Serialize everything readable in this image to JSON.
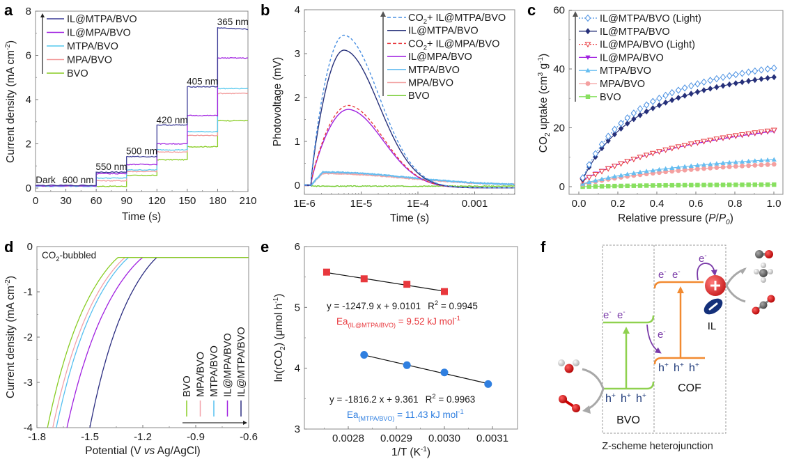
{
  "panels": {
    "a": {
      "letter": "a"
    },
    "b": {
      "letter": "b"
    },
    "c": {
      "letter": "c"
    },
    "d": {
      "letter": "d"
    },
    "e": {
      "letter": "e"
    },
    "f": {
      "letter": "f"
    }
  },
  "chart_data": [
    {
      "id": "a",
      "type": "line",
      "title": "",
      "xlabel": "Time (s)",
      "ylabel": "Current density (mA cm-2)",
      "xlim": [
        0,
        210
      ],
      "ylim": [
        0,
        8
      ],
      "xticks": [
        0,
        30,
        60,
        90,
        120,
        150,
        180,
        210
      ],
      "yticks": [
        0,
        2,
        4,
        6,
        8
      ],
      "legend": "top-left",
      "annotations": [
        {
          "text": "Dark",
          "x": 10,
          "y": 0.35
        },
        {
          "text": "600 nm",
          "x": 42,
          "y": 0.35
        },
        {
          "text": "550 nm",
          "x": 75,
          "y": 0.95
        },
        {
          "text": "500 nm",
          "x": 105,
          "y": 1.65
        },
        {
          "text": "420 nm",
          "x": 135,
          "y": 3.05
        },
        {
          "text": "405 nm",
          "x": 165,
          "y": 4.8
        },
        {
          "text": "365 nm",
          "x": 195,
          "y": 7.5
        }
      ],
      "step_x": [
        0,
        60,
        90,
        120,
        150,
        180,
        210
      ],
      "series": [
        {
          "name": "IL@MTPA/BVO",
          "color": "#3a3a96",
          "values": [
            0.12,
            0.72,
            1.42,
            2.85,
            4.58,
            7.25
          ]
        },
        {
          "name": "IL@MPA/BVO",
          "color": "#a020e0",
          "values": [
            0.1,
            0.65,
            1.07,
            2.0,
            3.28,
            5.88
          ]
        },
        {
          "name": "MTPA/BVO",
          "color": "#55c8ee",
          "values": [
            0.08,
            0.45,
            0.82,
            1.73,
            2.55,
            4.5
          ]
        },
        {
          "name": "MPA/BVO",
          "color": "#f29a9a",
          "values": [
            0.09,
            0.33,
            0.75,
            1.63,
            2.38,
            4.28
          ]
        },
        {
          "name": "BVO",
          "color": "#88cc22",
          "values": [
            0.1,
            0.08,
            0.57,
            1.28,
            1.87,
            3.05
          ]
        }
      ]
    },
    {
      "id": "b",
      "type": "line",
      "title": "",
      "xlabel": "Time (s)",
      "ylabel": "Photovoltage (mV)",
      "xscale": "log",
      "xlim": [
        1e-06,
        0.005
      ],
      "ylim": [
        -0.15,
        4
      ],
      "xticks": [
        "1E-6",
        "1E-5",
        "1E-4",
        "0.001"
      ],
      "yticks": [
        0,
        1,
        2,
        3,
        4
      ],
      "legend": "top-right",
      "series": [
        {
          "name": "CO2+ IL@MTPA/BVO",
          "color": "#4a90e2",
          "dashed": true,
          "peak": 3.42,
          "peak_time": 5e-06
        },
        {
          "name": "IL@MTPA/BVO",
          "color": "#26307a",
          "dashed": false,
          "peak": 3.08,
          "peak_time": 5e-06
        },
        {
          "name": "CO2+ IL@MPA/BVO",
          "color": "#e8383d",
          "dashed": true,
          "peak": 1.82,
          "peak_time": 6e-06
        },
        {
          "name": "IL@MPA/BVO",
          "color": "#a020e0",
          "dashed": false,
          "peak": 1.73,
          "peak_time": 6e-06
        },
        {
          "name": "MTPA/BVO",
          "color": "#66bdf0",
          "dashed": false,
          "peak": 0.3,
          "peak_time": 2.2e-06
        },
        {
          "name": "MPA/BVO",
          "color": "#f2a6a6",
          "dashed": false,
          "peak": 0.27,
          "peak_time": 2.2e-06
        },
        {
          "name": "BVO",
          "color": "#77cc33",
          "dashed": false,
          "peak": -0.02,
          "peak_time": 5e-06
        }
      ]
    },
    {
      "id": "c",
      "type": "scatter",
      "title": "",
      "xlabel": "Relative pressure (P/P0)",
      "ylabel": "CO2 uptake (cm3 g-1)",
      "xlim": [
        -0.04,
        1.04
      ],
      "ylim": [
        -2.5,
        60
      ],
      "xticks": [
        0.0,
        0.2,
        0.4,
        0.6,
        0.8,
        1.0
      ],
      "yticks": [
        0,
        20,
        40,
        60
      ],
      "legend": "top-left",
      "series": [
        {
          "name": "IL@MTPA/BVO (Light)",
          "color": "#4a90e2",
          "marker": "diamond-open",
          "dashed": true,
          "at_p1": 40.3,
          "at_p002": 3.0
        },
        {
          "name": "IL@MTPA/BVO",
          "color": "#26307a",
          "marker": "diamond",
          "dashed": false,
          "at_p1": 37.2,
          "at_p002": 2.5
        },
        {
          "name": "IL@MPA/BVO (Light)",
          "color": "#e8383d",
          "marker": "triangle-down-open",
          "dashed": true,
          "at_p1": 19.2,
          "at_p002": 2.0
        },
        {
          "name": "IL@MPA/BVO",
          "color": "#a020e0",
          "marker": "triangle-down",
          "dashed": false,
          "at_p1": 18.8,
          "at_p002": 2.3
        },
        {
          "name": "MTPA/BVO",
          "color": "#66bdf0",
          "marker": "triangle-up",
          "dashed": false,
          "at_p1": 9.2,
          "at_p002": 1.0
        },
        {
          "name": "MPA/BVO",
          "color": "#f4a0a0",
          "marker": "circle",
          "dashed": false,
          "at_p1": 7.6,
          "at_p002": 0.8
        },
        {
          "name": "BVO",
          "color": "#88e060",
          "marker": "square",
          "dashed": false,
          "at_p1": 0.7,
          "at_p002": 0.0
        }
      ]
    },
    {
      "id": "d",
      "type": "line",
      "title": "",
      "xlabel": "Potential (V vs Ag/AgCl)",
      "ylabel": "Current density (mA cm-2)",
      "xlim": [
        -1.8,
        -0.6
      ],
      "ylim": [
        -4,
        0
      ],
      "xticks": [
        -1.8,
        -1.5,
        -1.2,
        -0.9,
        -0.6
      ],
      "yticks": [
        0,
        -1,
        -2,
        -3,
        -4
      ],
      "annotation": "CO2-bubbled",
      "legend": "bottom-right",
      "series": [
        {
          "name": "BVO",
          "color": "#88cc22",
          "onset": -1.34,
          "x_at_minus4": -1.74
        },
        {
          "name": "MPA/BVO",
          "color": "#f2a0a8",
          "onset": -1.3,
          "x_at_minus4": -1.71
        },
        {
          "name": "MTPA/BVO",
          "color": "#55c0f0",
          "onset": -1.28,
          "x_at_minus4": -1.69
        },
        {
          "name": "IL@MPA/BVO",
          "color": "#a020e0",
          "onset": -1.2,
          "x_at_minus4": -1.63
        },
        {
          "name": "IL@MTPA/BVO",
          "color": "#2a2c80",
          "onset": -1.12,
          "x_at_minus4": -1.5
        }
      ],
      "plateau": -0.24
    },
    {
      "id": "e",
      "type": "scatter",
      "title": "",
      "xlabel": "1/T (K-1)",
      "ylabel": "ln(rCO2) (μmol h-1)",
      "xlim": [
        0.002709,
        0.003152
      ],
      "ylim": [
        3,
        6
      ],
      "xticks": [
        "0.0028",
        "0.0029",
        "0.0030",
        "0.0031"
      ],
      "yticks": [
        3,
        4,
        5,
        6
      ],
      "series": [
        {
          "name": "IL@MTPA/BVO",
          "color": "#e8383d",
          "marker": "square",
          "x": [
            0.002755,
            0.002833,
            0.002922,
            0.003
          ],
          "y": [
            5.58,
            5.47,
            5.38,
            5.26
          ],
          "fit": {
            "slope": -1247.9,
            "intercept": 9.0101
          }
        },
        {
          "name": "MTPA/BVO",
          "color": "#2f7fe0",
          "marker": "circle",
          "x": [
            0.002833,
            0.002922,
            0.003,
            0.003091
          ],
          "y": [
            4.22,
            4.05,
            3.93,
            3.74
          ],
          "fit": {
            "slope": -1816.2,
            "intercept": 9.361
          }
        }
      ],
      "annotations": {
        "eq1": "y = -1247.9 x + 9.0101",
        "r2_1_label": "R",
        "r2_1_value": " = 0.9945",
        "ea1_prefix": "Ea",
        "ea1_sub": "(IL@MTPA/BVO)",
        "ea1_value": " = 9.52 kJ mol",
        "eq2": "y = -1816.2 x + 9.361",
        "r2_2_label": "R",
        "r2_2_value": " = 0.9963",
        "ea2_prefix": "Ea",
        "ea2_sub": "(MTPA/BVO)",
        "ea2_value": " = 11.43 kJ mol"
      }
    }
  ],
  "axis_labels": {
    "a_y_main": "Current density (mA cm",
    "a_y_sup": "-2",
    "a_y_end": ")",
    "b_y": "Photovoltage (mV)",
    "c_y_pre": "CO",
    "c_y_sub": "2",
    "c_y_mid": " uptake (cm",
    "c_y_sup1": "3",
    "c_y_mid2": " g",
    "c_y_sup2": "-1",
    "c_y_end": ")",
    "c_x_pre": "Relative pressure (",
    "c_x_p": "P",
    "c_x_slash": "/",
    "c_x_p0": "P",
    "c_x_0": "0",
    "c_x_end": ")",
    "d_x_pre": "Potential (V ",
    "d_x_vs": "vs",
    "d_x_end": " Ag/AgCl)",
    "d_annot_pre": "CO",
    "d_annot_sub": "2",
    "d_annot_end": "-bubbled",
    "e_y_pre": "ln(rCO",
    "e_y_sub": "2",
    "e_y_mid": ") (μmol h",
    "e_y_sup": "-1",
    "e_y_end": ")",
    "e_x_pre": "1/T (K",
    "e_x_sup": "-1",
    "e_x_end": ")",
    "b_leg_co2": "CO",
    "b_leg_sub": "2",
    "b_leg_plus": "+ "
  },
  "diagram": {
    "title": "Z-scheme heterojunction",
    "left_label": "BVO",
    "right_label": "COF",
    "il_label": "IL",
    "electron": "e",
    "electron_sup": "-",
    "hole": "h",
    "hole_sup": "+",
    "colors": {
      "bvo": "#8fd14f",
      "cof": "#f28a30",
      "electron": "#7a3aa8",
      "hole": "#1f3a7a",
      "cation": "#e23a3a",
      "anion": "#14307a",
      "arrow_gray": "#a8a8a8"
    }
  }
}
